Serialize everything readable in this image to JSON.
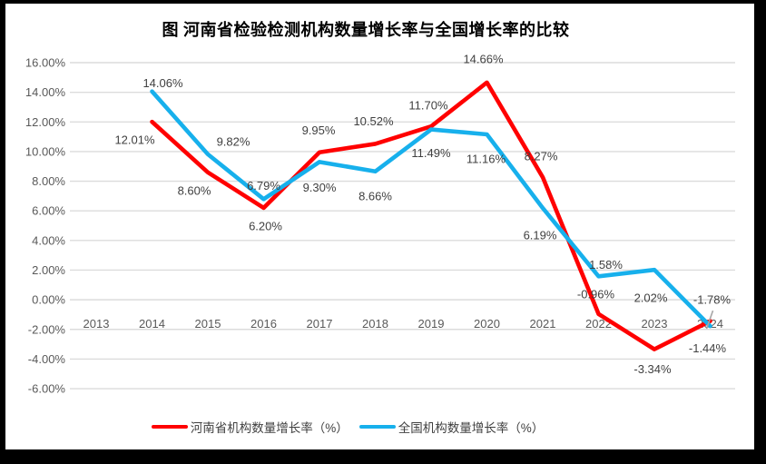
{
  "title": "图  河南省检验检测机构数量增长率与全国增长率的比较",
  "colors": {
    "henan_line": "#FF0000",
    "national_line": "#17B0EC",
    "gridline": "#DCDCDC",
    "tick_label": "#595959",
    "data_label": "#404040",
    "leader_line": "#A6A6A6",
    "frame_border": "#000000",
    "panel_background": "#FFFFFF"
  },
  "chart_data": {
    "type": "line",
    "categories": [
      "2013",
      "2014",
      "2015",
      "2016",
      "2017",
      "2018",
      "2019",
      "2020",
      "2021",
      "2022",
      "2023",
      "2024"
    ],
    "series": [
      {
        "name": "河南省机构数量增长率（%）",
        "color": "#FF0000",
        "values": [
          null,
          12.01,
          8.6,
          6.2,
          9.95,
          10.52,
          11.7,
          14.66,
          8.27,
          -0.96,
          -3.34,
          -1.44
        ],
        "labels": [
          null,
          "12.01%",
          "8.60%",
          "6.20%",
          "9.95%",
          "10.52%",
          "11.70%",
          "14.66%",
          "8.27%",
          "-0.96%",
          "-3.34%",
          "-1.44%"
        ],
        "label_offsets": [
          null,
          [
            -19,
            20
          ],
          [
            -15,
            20
          ],
          [
            2,
            20
          ],
          [
            -1,
            -24
          ],
          [
            -2,
            -25
          ],
          [
            -3,
            -23
          ],
          [
            -4,
            -26
          ],
          [
            -2,
            -23
          ],
          [
            -3,
            -22
          ],
          [
            -2,
            22
          ],
          [
            -3,
            30
          ]
        ]
      },
      {
        "name": "全国机构数量增长率（%）",
        "color": "#17B0EC",
        "values": [
          null,
          14.06,
          9.82,
          6.79,
          9.3,
          8.66,
          11.49,
          11.16,
          6.19,
          1.58,
          2.02,
          -1.78
        ],
        "labels": [
          null,
          "14.06%",
          "9.82%",
          "6.79%",
          "9.30%",
          "8.66%",
          "11.49%",
          "11.16%",
          "6.19%",
          "1.58%",
          "2.02%",
          "-1.78%"
        ],
        "label_offsets": [
          null,
          [
            12,
            -9
          ],
          [
            28,
            -14
          ],
          [
            0,
            -15
          ],
          [
            0,
            28
          ],
          [
            0,
            27
          ],
          [
            0,
            26
          ],
          [
            -1,
            27
          ],
          [
            -3,
            30
          ],
          [
            8,
            -13
          ],
          [
            -4,
            31
          ],
          [
            2,
            -29
          ]
        ],
        "leader_index": 11
      }
    ],
    "ylim": [
      -6,
      16
    ],
    "y_tick_step": 2,
    "y_ticks": [
      "16.00%",
      "14.00%",
      "12.00%",
      "10.00%",
      "8.00%",
      "6.00%",
      "4.00%",
      "2.00%",
      "0.00%",
      "-2.00%",
      "-4.00%",
      "-6.00%"
    ],
    "grid": true,
    "legend_position": "bottom"
  }
}
